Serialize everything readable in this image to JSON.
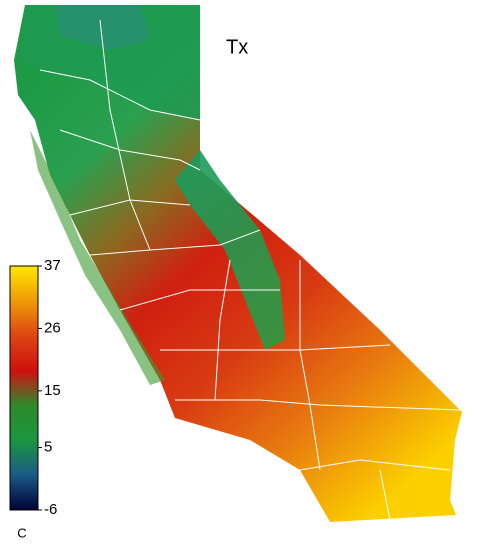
{
  "title": "Tx",
  "colorbar": {
    "unit": "C",
    "range": [
      -6,
      37
    ],
    "ticks": [
      -6,
      5,
      15,
      26,
      37
    ],
    "colors": [
      "#000033",
      "#1b5a86",
      "#1a9640",
      "#2f8a2a",
      "#d01010",
      "#de4512",
      "#ef9a05",
      "#ffe800"
    ]
  }
}
